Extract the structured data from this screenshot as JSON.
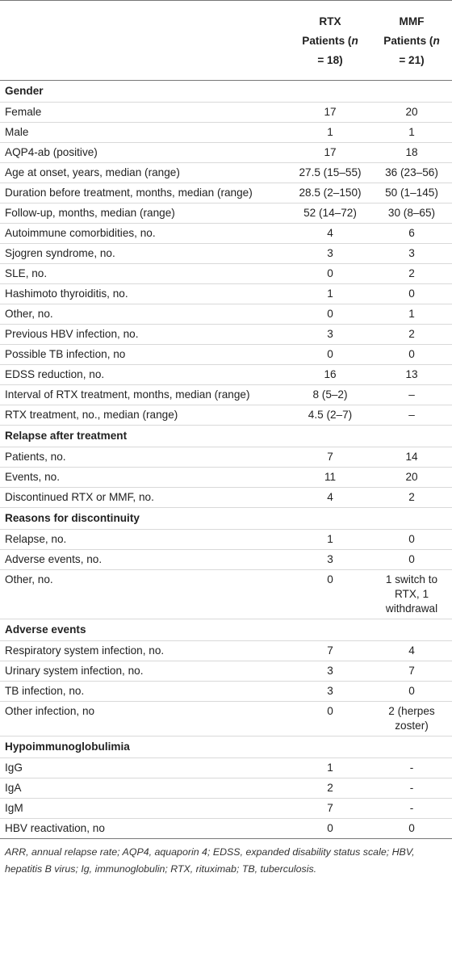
{
  "header": {
    "col1": "",
    "rtx_line1": "RTX",
    "rtx_line2": "Patients (n",
    "rtx_line3": "= 18)",
    "mmf_line1": "MMF",
    "mmf_line2": "Patients (n",
    "mmf_line3": "= 21)"
  },
  "sections": [
    {
      "title": "Gender",
      "rows": [
        {
          "label": "Female",
          "rtx": "17",
          "mmf": "20"
        },
        {
          "label": "Male",
          "rtx": "1",
          "mmf": "1"
        },
        {
          "label": "AQP4-ab (positive)",
          "rtx": "17",
          "mmf": "18"
        },
        {
          "label": "Age at onset, years, median (range)",
          "rtx": "27.5 (15–55)",
          "mmf": "36 (23–56)"
        },
        {
          "label": "Duration before treatment, months, median (range)",
          "rtx": "28.5 (2–150)",
          "mmf": "50 (1–145)"
        },
        {
          "label": "Follow-up, months, median (range)",
          "rtx": "52 (14–72)",
          "mmf": "30 (8–65)"
        },
        {
          "label": "Autoimmune comorbidities, no.",
          "rtx": "4",
          "mmf": "6"
        },
        {
          "label": "Sjogren syndrome, no.",
          "rtx": "3",
          "mmf": "3"
        },
        {
          "label": "SLE, no.",
          "rtx": "0",
          "mmf": "2"
        },
        {
          "label": "Hashimoto thyroiditis, no.",
          "rtx": "1",
          "mmf": "0"
        },
        {
          "label": "Other, no.",
          "rtx": "0",
          "mmf": "1"
        },
        {
          "label": "Previous HBV infection, no.",
          "rtx": "3",
          "mmf": "2"
        },
        {
          "label": "Possible TB infection, no",
          "rtx": "0",
          "mmf": "0"
        },
        {
          "label": "EDSS reduction, no.",
          "rtx": "16",
          "mmf": "13"
        },
        {
          "label": "Interval of RTX treatment, months, median (range)",
          "rtx": "8 (5–2)",
          "mmf": "–"
        },
        {
          "label": "RTX treatment, no., median (range)",
          "rtx": "4.5 (2–7)",
          "mmf": "–"
        }
      ]
    },
    {
      "title": "Relapse after treatment",
      "rows": [
        {
          "label": "Patients, no.",
          "rtx": "7",
          "mmf": "14"
        },
        {
          "label": "Events, no.",
          "rtx": "11",
          "mmf": "20"
        },
        {
          "label": "Discontinued RTX or MMF, no.",
          "rtx": "4",
          "mmf": "2"
        }
      ]
    },
    {
      "title": "Reasons for discontinuity",
      "rows": [
        {
          "label": "Relapse, no.",
          "rtx": "1",
          "mmf": "0"
        },
        {
          "label": "Adverse events, no.",
          "rtx": "3",
          "mmf": "0"
        },
        {
          "label": "Other, no.",
          "rtx": "0",
          "mmf": "1 switch to RTX, 1 withdrawal"
        }
      ]
    },
    {
      "title": "Adverse events",
      "rows": [
        {
          "label": "Respiratory system infection, no.",
          "rtx": "7",
          "mmf": "4"
        },
        {
          "label": "Urinary system infection, no.",
          "rtx": "3",
          "mmf": "7"
        },
        {
          "label": "TB infection, no.",
          "rtx": "3",
          "mmf": "0"
        },
        {
          "label": "Other infection, no",
          "rtx": "0",
          "mmf": "2 (herpes zoster)"
        }
      ]
    },
    {
      "title": "Hypoimmunoglobulimia",
      "rows": [
        {
          "label": "IgG",
          "rtx": "1",
          "mmf": "-"
        },
        {
          "label": "IgA",
          "rtx": "2",
          "mmf": "-"
        },
        {
          "label": "IgM",
          "rtx": "7",
          "mmf": "-"
        },
        {
          "label": "HBV reactivation, no",
          "rtx": "0",
          "mmf": "0"
        }
      ]
    }
  ],
  "footnote": "ARR, annual relapse rate; AQP4, aquaporin 4; EDSS, expanded disability status scale; HBV, hepatitis B virus; Ig, immunoglobulin; RTX, rituximab; TB, tuberculosis."
}
